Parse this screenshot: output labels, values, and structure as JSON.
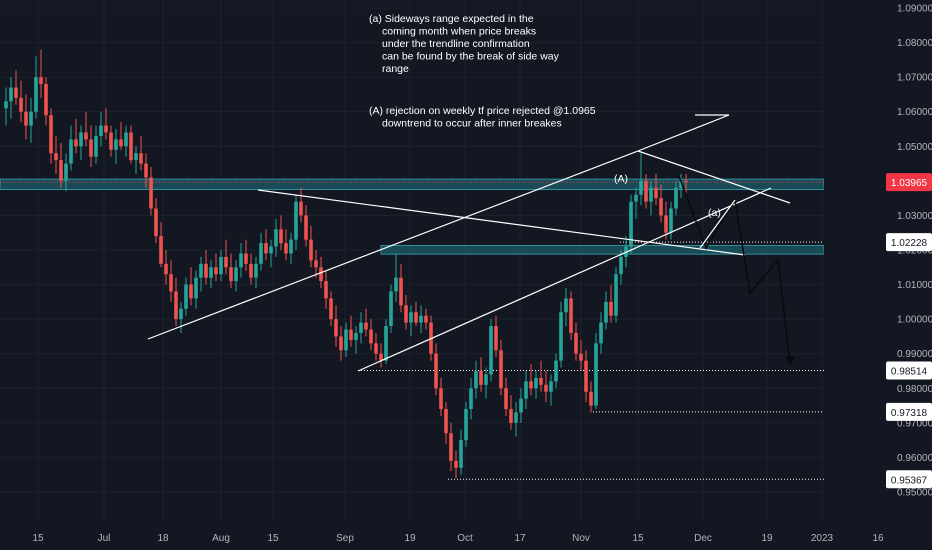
{
  "colors": {
    "background": "#131722",
    "grid": "#1e222d",
    "up": "#26a69a",
    "down": "#ef5350",
    "zone": "#1c5c68",
    "zone_border": "#2f8f9d",
    "line": "#ffffff",
    "axis_text": "#b2b5be",
    "current_price": "#f23645"
  },
  "chart_data": {
    "type": "candlestick",
    "y_axis": {
      "ticks": [
        "1.09000",
        "1.08000",
        "1.07000",
        "1.06000",
        "1.05000",
        "1.04000",
        "1.03000",
        "1.02000",
        "1.01000",
        "1.00000",
        "0.99000",
        "0.98000",
        "0.97000",
        "0.96000",
        "0.95000"
      ],
      "range": [
        0.9495,
        1.0925
      ]
    },
    "x_axis": {
      "ticks": [
        "15",
        "Jul",
        "18",
        "Aug",
        "15",
        "Sep",
        "19",
        "Oct",
        "17",
        "Nov",
        "15",
        "Dec",
        "19",
        "2023",
        "16"
      ]
    },
    "current_price": "1.03965",
    "price_labels": [
      "1.02228",
      "0.98514",
      "0.97318",
      "0.95367"
    ],
    "zones": [
      {
        "name": "upper-resistance-zone",
        "from": 1.0375,
        "to": 1.0405
      },
      {
        "name": "inner-support-zone",
        "from": 1.0188,
        "to": 1.0213
      }
    ],
    "annotations": [
      {
        "id": "note_a",
        "lines": [
          "(a) Sideways range expected in the",
          "coming month when price breaks",
          "under the trendline confirmation",
          "can be found by the break of side way",
          "range"
        ]
      },
      {
        "id": "note_A",
        "lines": [
          "(A) rejection on weekly tf price rejected @1.0965",
          "downtrend to occur after inner breakes"
        ]
      }
    ],
    "wave_labels": [
      "(A)",
      "(a)"
    ],
    "candles": [
      [
        1.061,
        1.067,
        1.056,
        1.063
      ],
      [
        1.063,
        1.07,
        1.058,
        1.067
      ],
      [
        1.067,
        1.072,
        1.062,
        1.064
      ],
      [
        1.064,
        1.069,
        1.057,
        1.06
      ],
      [
        1.06,
        1.065,
        1.052,
        1.056
      ],
      [
        1.056,
        1.064,
        1.051,
        1.06
      ],
      [
        1.06,
        1.076,
        1.058,
        1.07
      ],
      [
        1.07,
        1.078,
        1.064,
        1.068
      ],
      [
        1.068,
        1.07,
        1.056,
        1.059
      ],
      [
        1.059,
        1.061,
        1.045,
        1.048
      ],
      [
        1.048,
        1.053,
        1.042,
        1.046
      ],
      [
        1.046,
        1.051,
        1.038,
        1.04
      ],
      [
        1.04,
        1.048,
        1.037,
        1.045
      ],
      [
        1.045,
        1.056,
        1.043,
        1.052
      ],
      [
        1.052,
        1.058,
        1.048,
        1.05
      ],
      [
        1.05,
        1.056,
        1.046,
        1.054
      ],
      [
        1.054,
        1.06,
        1.05,
        1.052
      ],
      [
        1.052,
        1.056,
        1.044,
        1.047
      ],
      [
        1.047,
        1.056,
        1.045,
        1.053
      ],
      [
        1.053,
        1.06,
        1.05,
        1.056
      ],
      [
        1.056,
        1.061,
        1.052,
        1.054
      ],
      [
        1.054,
        1.056,
        1.047,
        1.049
      ],
      [
        1.049,
        1.055,
        1.045,
        1.052
      ],
      [
        1.052,
        1.057,
        1.049,
        1.05
      ],
      [
        1.05,
        1.056,
        1.047,
        1.054
      ],
      [
        1.054,
        1.056,
        1.045,
        1.046
      ],
      [
        1.046,
        1.05,
        1.042,
        1.048
      ],
      [
        1.048,
        1.053,
        1.043,
        1.045
      ],
      [
        1.045,
        1.048,
        1.038,
        1.041
      ],
      [
        1.041,
        1.044,
        1.03,
        1.032
      ],
      [
        1.032,
        1.035,
        1.022,
        1.024
      ],
      [
        1.024,
        1.028,
        1.015,
        1.016
      ],
      [
        1.016,
        1.02,
        1.01,
        1.013
      ],
      [
        1.013,
        1.017,
        1.005,
        1.008
      ],
      [
        1.008,
        1.012,
        0.998,
        1.0
      ],
      [
        1.0,
        1.005,
        0.996,
        1.003
      ],
      [
        1.003,
        1.012,
        1.001,
        1.01
      ],
      [
        1.01,
        1.015,
        1.004,
        1.006
      ],
      [
        1.006,
        1.014,
        1.003,
        1.012
      ],
      [
        1.012,
        1.018,
        1.008,
        1.016
      ],
      [
        1.016,
        1.02,
        1.01,
        1.012
      ],
      [
        1.012,
        1.017,
        1.009,
        1.015
      ],
      [
        1.015,
        1.019,
        1.011,
        1.013
      ],
      [
        1.013,
        1.02,
        1.011,
        1.018
      ],
      [
        1.018,
        1.023,
        1.013,
        1.015
      ],
      [
        1.015,
        1.019,
        1.009,
        1.011
      ],
      [
        1.011,
        1.017,
        1.008,
        1.015
      ],
      [
        1.015,
        1.022,
        1.012,
        1.019
      ],
      [
        1.019,
        1.023,
        1.014,
        1.016
      ],
      [
        1.016,
        1.019,
        1.01,
        1.012
      ],
      [
        1.012,
        1.018,
        1.009,
        1.016
      ],
      [
        1.016,
        1.025,
        1.014,
        1.022
      ],
      [
        1.022,
        1.026,
        1.017,
        1.019
      ],
      [
        1.019,
        1.023,
        1.015,
        1.021
      ],
      [
        1.021,
        1.029,
        1.018,
        1.026
      ],
      [
        1.026,
        1.03,
        1.02,
        1.022
      ],
      [
        1.022,
        1.026,
        1.017,
        1.019
      ],
      [
        1.019,
        1.025,
        1.016,
        1.023
      ],
      [
        1.023,
        1.036,
        1.02,
        1.034
      ],
      [
        1.034,
        1.038,
        1.028,
        1.03
      ],
      [
        1.03,
        1.033,
        1.021,
        1.023
      ],
      [
        1.023,
        1.027,
        1.015,
        1.017
      ],
      [
        1.017,
        1.02,
        1.012,
        1.015
      ],
      [
        1.015,
        1.018,
        1.009,
        1.011
      ],
      [
        1.011,
        1.014,
        1.003,
        1.006
      ],
      [
        1.006,
        1.008,
        0.998,
        1.0
      ],
      [
        1.0,
        1.004,
        0.992,
        0.995
      ],
      [
        0.995,
        0.998,
        0.988,
        0.991
      ],
      [
        0.991,
        0.999,
        0.989,
        0.997
      ],
      [
        0.997,
        1.001,
        0.992,
        0.994
      ],
      [
        0.994,
        0.998,
        0.99,
        0.996
      ],
      [
        0.996,
        1.002,
        0.993,
        0.999
      ],
      [
        0.999,
        1.003,
        0.995,
        0.997
      ],
      [
        0.997,
        1.0,
        0.991,
        0.993
      ],
      [
        0.993,
        0.996,
        0.988,
        0.99
      ],
      [
        0.99,
        0.993,
        0.986,
        0.988
      ],
      [
        0.988,
        1.0,
        0.987,
        0.998
      ],
      [
        0.998,
        1.01,
        0.996,
        1.008
      ],
      [
        1.008,
        1.019,
        1.005,
        1.012
      ],
      [
        1.012,
        1.016,
        1.002,
        1.004
      ],
      [
        1.004,
        1.007,
        0.997,
        0.999
      ],
      [
        0.999,
        1.004,
        0.995,
        1.002
      ],
      [
        1.002,
        1.005,
        0.998,
        0.999
      ],
      [
        0.999,
        1.004,
        0.996,
        1.001
      ],
      [
        1.001,
        1.003,
        0.997,
        0.999
      ],
      [
        0.999,
        1.001,
        0.988,
        0.99
      ],
      [
        0.99,
        0.993,
        0.978,
        0.98
      ],
      [
        0.98,
        0.983,
        0.972,
        0.974
      ],
      [
        0.974,
        0.976,
        0.964,
        0.967
      ],
      [
        0.967,
        0.97,
        0.956,
        0.959
      ],
      [
        0.959,
        0.962,
        0.954,
        0.957
      ],
      [
        0.957,
        0.968,
        0.955,
        0.965
      ],
      [
        0.965,
        0.976,
        0.963,
        0.974
      ],
      [
        0.974,
        0.983,
        0.971,
        0.98
      ],
      [
        0.98,
        0.988,
        0.977,
        0.985
      ],
      [
        0.985,
        0.989,
        0.979,
        0.981
      ],
      [
        0.981,
        0.986,
        0.977,
        0.984
      ],
      [
        0.984,
        1.0,
        0.982,
        0.998
      ],
      [
        0.998,
        1.001,
        0.989,
        0.991
      ],
      [
        0.991,
        0.994,
        0.978,
        0.98
      ],
      [
        0.98,
        0.983,
        0.972,
        0.974
      ],
      [
        0.974,
        0.978,
        0.968,
        0.97
      ],
      [
        0.97,
        0.976,
        0.966,
        0.973
      ],
      [
        0.973,
        0.98,
        0.97,
        0.977
      ],
      [
        0.977,
        0.985,
        0.974,
        0.982
      ],
      [
        0.982,
        0.987,
        0.978,
        0.98
      ],
      [
        0.98,
        0.985,
        0.977,
        0.983
      ],
      [
        0.983,
        0.988,
        0.979,
        0.981
      ],
      [
        0.981,
        0.985,
        0.976,
        0.979
      ],
      [
        0.979,
        0.984,
        0.975,
        0.982
      ],
      [
        0.982,
        0.99,
        0.98,
        0.988
      ],
      [
        0.988,
        1.005,
        0.986,
        1.002
      ],
      [
        1.002,
        1.009,
        0.998,
        1.006
      ],
      [
        1.006,
        1.008,
        0.994,
        0.996
      ],
      [
        0.996,
        0.999,
        0.988,
        0.99
      ],
      [
        0.99,
        0.994,
        0.985,
        0.988
      ],
      [
        0.988,
        0.991,
        0.976,
        0.979
      ],
      [
        0.979,
        0.982,
        0.973,
        0.975
      ],
      [
        0.975,
        0.996,
        0.974,
        0.993
      ],
      [
        0.993,
        1.002,
        0.99,
        0.999
      ],
      [
        0.999,
        1.008,
        0.997,
        1.005
      ],
      [
        1.005,
        1.01,
        0.999,
        1.001
      ],
      [
        1.001,
        1.015,
        0.999,
        1.013
      ],
      [
        1.013,
        1.02,
        1.01,
        1.018
      ],
      [
        1.018,
        1.024,
        1.015,
        1.021
      ],
      [
        1.021,
        1.036,
        1.019,
        1.034
      ],
      [
        1.034,
        1.038,
        1.029,
        1.036
      ],
      [
        1.036,
        1.048,
        1.033,
        1.04
      ],
      [
        1.04,
        1.042,
        1.032,
        1.034
      ],
      [
        1.034,
        1.04,
        1.03,
        1.038
      ],
      [
        1.038,
        1.042,
        1.033,
        1.035
      ],
      [
        1.035,
        1.039,
        1.028,
        1.03
      ],
      [
        1.03,
        1.034,
        1.023,
        1.025
      ],
      [
        1.025,
        1.034,
        1.023,
        1.032
      ],
      [
        1.032,
        1.04,
        1.03,
        1.038
      ],
      [
        1.038,
        1.042,
        1.035,
        1.04
      ],
      [
        1.04,
        1.042,
        1.036,
        1.0397
      ]
    ],
    "candle_x_start": 6,
    "candle_spacing": 5.0
  }
}
